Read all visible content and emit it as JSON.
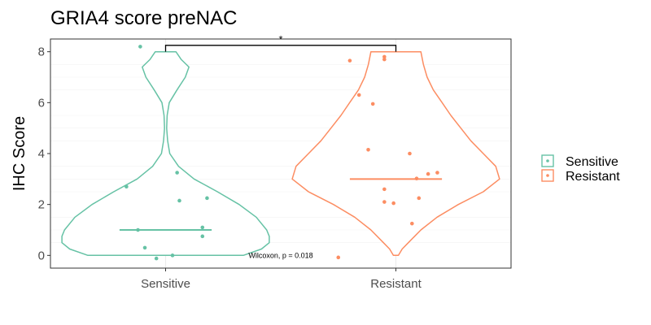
{
  "chart_data": {
    "type": "violin",
    "title": "GRIA4 score preNAC",
    "xlabel": "",
    "ylabel": "IHC Score",
    "categories": [
      "Sensitive",
      "Resistant"
    ],
    "ylim": [
      -0.5,
      8.5
    ],
    "yticks": [
      0,
      2,
      4,
      6,
      8
    ],
    "grid": true,
    "legend": {
      "position": "right",
      "entries": [
        "Sensitive",
        "Resistant"
      ]
    },
    "colors": {
      "Sensitive": "#66c2a5",
      "Resistant": "#fc8d62"
    },
    "series": [
      {
        "name": "Sensitive",
        "median": 1,
        "points": [
          {
            "x": -0.11,
            "y": 8.2
          },
          {
            "x": -0.17,
            "y": 2.7
          },
          {
            "x": 0.05,
            "y": 3.25
          },
          {
            "x": 0.06,
            "y": 2.15
          },
          {
            "x": 0.18,
            "y": 2.25
          },
          {
            "x": -0.12,
            "y": 1.0
          },
          {
            "x": 0.16,
            "y": 1.1
          },
          {
            "x": 0.16,
            "y": 0.75
          },
          {
            "x": -0.09,
            "y": 0.3
          },
          {
            "x": -0.04,
            "y": -0.12
          },
          {
            "x": 0.03,
            "y": 0.0
          }
        ],
        "violin_profile": [
          [
            0,
            1.5
          ],
          [
            0.25,
            1.85
          ],
          [
            0.5,
            2.0
          ],
          [
            0.75,
            2.0
          ],
          [
            1.0,
            1.95
          ],
          [
            1.5,
            1.75
          ],
          [
            2.0,
            1.42
          ],
          [
            2.5,
            1.0
          ],
          [
            3.0,
            0.55
          ],
          [
            3.5,
            0.25
          ],
          [
            4.0,
            0.08
          ],
          [
            4.5,
            0.04
          ],
          [
            5.0,
            0.02
          ],
          [
            5.5,
            0.03
          ],
          [
            6.0,
            0.07
          ],
          [
            6.5,
            0.22
          ],
          [
            7.0,
            0.38
          ],
          [
            7.4,
            0.45
          ],
          [
            7.7,
            0.3
          ],
          [
            8.0,
            0.2
          ]
        ]
      },
      {
        "name": "Resistant",
        "median": 3,
        "points": [
          {
            "x": -0.2,
            "y": 7.65
          },
          {
            "x": -0.05,
            "y": 7.8
          },
          {
            "x": -0.05,
            "y": 7.7
          },
          {
            "x": -0.16,
            "y": 6.3
          },
          {
            "x": -0.1,
            "y": 5.95
          },
          {
            "x": -0.12,
            "y": 4.15
          },
          {
            "x": 0.06,
            "y": 4.0
          },
          {
            "x": 0.09,
            "y": 3.02
          },
          {
            "x": 0.14,
            "y": 3.2
          },
          {
            "x": 0.18,
            "y": 3.25
          },
          {
            "x": -0.05,
            "y": 2.6
          },
          {
            "x": -0.05,
            "y": 2.1
          },
          {
            "x": -0.01,
            "y": 2.05
          },
          {
            "x": 0.1,
            "y": 2.25
          },
          {
            "x": 0.07,
            "y": 1.25
          },
          {
            "x": -0.25,
            "y": -0.08
          }
        ],
        "violin_profile": [
          [
            0,
            0.02
          ],
          [
            0.25,
            0.05
          ],
          [
            0.5,
            0.1
          ],
          [
            1.0,
            0.2
          ],
          [
            1.5,
            0.33
          ],
          [
            2.0,
            0.5
          ],
          [
            2.5,
            0.7
          ],
          [
            3.0,
            0.83
          ],
          [
            3.5,
            0.8
          ],
          [
            4.0,
            0.7
          ],
          [
            4.5,
            0.6
          ],
          [
            5.0,
            0.52
          ],
          [
            5.5,
            0.44
          ],
          [
            6.0,
            0.37
          ],
          [
            6.5,
            0.3
          ],
          [
            7.0,
            0.25
          ],
          [
            7.5,
            0.22
          ],
          [
            8.0,
            0.2
          ]
        ]
      }
    ],
    "annotations": {
      "significance": "*",
      "test": "Wilcoxon, p = 0.018"
    }
  }
}
